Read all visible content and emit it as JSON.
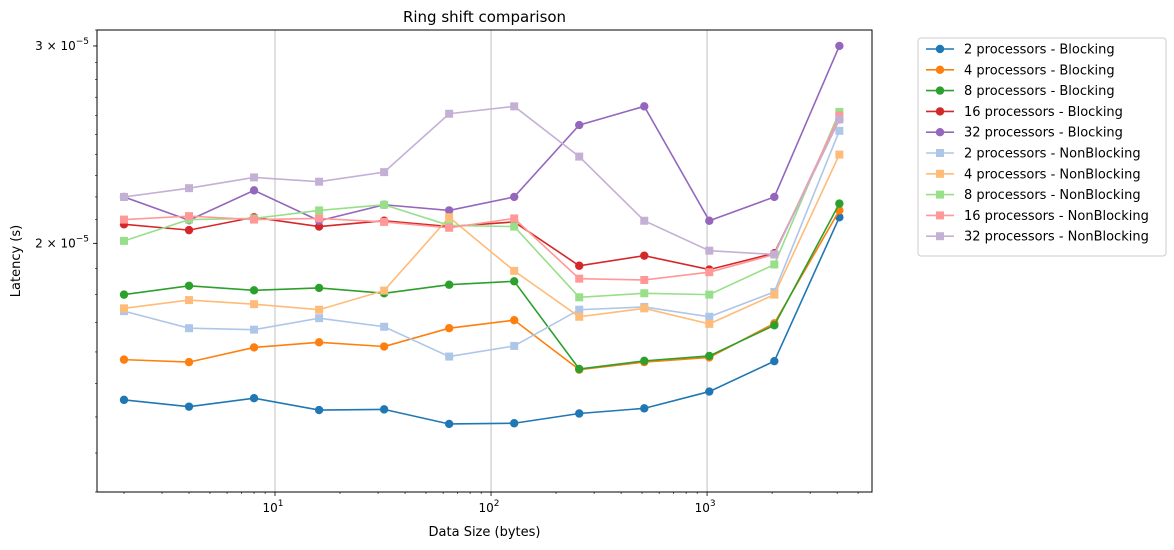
{
  "chart_data": {
    "type": "line",
    "title": "Ring shift comparison",
    "xlabel": "Data Size (bytes)",
    "ylabel": "Latency (s)",
    "xscale": "log",
    "yscale": "log",
    "xlim": [
      1.5,
      5800
    ],
    "ylim": [
      1.2e-05,
      3.1e-05
    ],
    "grid": "vertical major",
    "legend_placement": "outside right",
    "x": [
      2,
      4,
      8,
      16,
      32,
      64,
      128,
      256,
      512,
      1024,
      2048,
      4096
    ],
    "x_ticks": [
      {
        "value": 10,
        "label": "10",
        "sup": "1"
      },
      {
        "value": 100,
        "label": "10",
        "sup": "2"
      },
      {
        "value": 1000,
        "label": "10",
        "sup": "3"
      }
    ],
    "y_ticks": [
      {
        "value": 2e-05,
        "label": "2 × 10",
        "sup": "−5"
      },
      {
        "value": 3e-05,
        "label": "3 × 10",
        "sup": "−5"
      }
    ],
    "series": [
      {
        "name": "2 processors - Blocking",
        "color": "#1f77b4",
        "marker": "circle",
        "values": [
          1.45e-05,
          1.43e-05,
          1.455e-05,
          1.42e-05,
          1.422e-05,
          1.38e-05,
          1.382e-05,
          1.41e-05,
          1.425e-05,
          1.475e-05,
          1.57e-05,
          2.11e-05
        ]
      },
      {
        "name": "4 processors - Blocking",
        "color": "#ff7f0e",
        "marker": "circle",
        "values": [
          1.575e-05,
          1.567e-05,
          1.615e-05,
          1.632e-05,
          1.618e-05,
          1.68e-05,
          1.708e-05,
          1.543e-05,
          1.567e-05,
          1.582e-05,
          1.697e-05,
          2.14e-05
        ]
      },
      {
        "name": "8 processors - Blocking",
        "color": "#2ca02c",
        "marker": "circle",
        "values": [
          1.8e-05,
          1.833e-05,
          1.816e-05,
          1.825e-05,
          1.805e-05,
          1.837e-05,
          1.85e-05,
          1.545e-05,
          1.571e-05,
          1.587e-05,
          1.69e-05,
          2.17e-05
        ]
      },
      {
        "name": "16 processors - Blocking",
        "color": "#d62728",
        "marker": "circle",
        "values": [
          2.08e-05,
          2.055e-05,
          2.11e-05,
          2.07e-05,
          2.095e-05,
          2.07e-05,
          2.09e-05,
          1.91e-05,
          1.95e-05,
          1.895e-05,
          1.96e-05,
          2.58e-05
        ]
      },
      {
        "name": "32 processors - Blocking",
        "color": "#9467bd",
        "marker": "circle",
        "values": [
          2.2e-05,
          2.097e-05,
          2.23e-05,
          2.095e-05,
          2.165e-05,
          2.14e-05,
          2.2e-05,
          2.55e-05,
          2.65e-05,
          2.095e-05,
          2.2e-05,
          3e-05
        ]
      },
      {
        "name": "2 processors - NonBlocking",
        "color": "#aec7e8",
        "marker": "square",
        "values": [
          1.74e-05,
          1.68e-05,
          1.675e-05,
          1.715e-05,
          1.685e-05,
          1.585e-05,
          1.62e-05,
          1.745e-05,
          1.755e-05,
          1.72e-05,
          1.81e-05,
          2.52e-05
        ]
      },
      {
        "name": "4 processors - NonBlocking",
        "color": "#ffbb78",
        "marker": "square",
        "values": [
          1.75e-05,
          1.78e-05,
          1.765e-05,
          1.745e-05,
          1.815e-05,
          2.11e-05,
          1.89e-05,
          1.72e-05,
          1.75e-05,
          1.695e-05,
          1.8e-05,
          2.4e-05
        ]
      },
      {
        "name": "8 processors - NonBlocking",
        "color": "#98df8a",
        "marker": "square",
        "values": [
          2.01e-05,
          2.1e-05,
          2.105e-05,
          2.14e-05,
          2.165e-05,
          2.075e-05,
          2.07e-05,
          1.79e-05,
          1.805e-05,
          1.8e-05,
          1.915e-05,
          2.62e-05
        ]
      },
      {
        "name": "16 processors - NonBlocking",
        "color": "#ff9896",
        "marker": "square",
        "values": [
          2.1e-05,
          2.115e-05,
          2.1e-05,
          2.105e-05,
          2.09e-05,
          2.065e-05,
          2.105e-05,
          1.86e-05,
          1.855e-05,
          1.885e-05,
          1.955e-05,
          2.6e-05
        ]
      },
      {
        "name": "32 processors - NonBlocking",
        "color": "#c5b0d5",
        "marker": "square",
        "values": [
          2.2e-05,
          2.24e-05,
          2.29e-05,
          2.27e-05,
          2.315e-05,
          2.61e-05,
          2.65e-05,
          2.39e-05,
          2.095e-05,
          1.97e-05,
          1.955e-05,
          2.58e-05
        ]
      }
    ]
  }
}
